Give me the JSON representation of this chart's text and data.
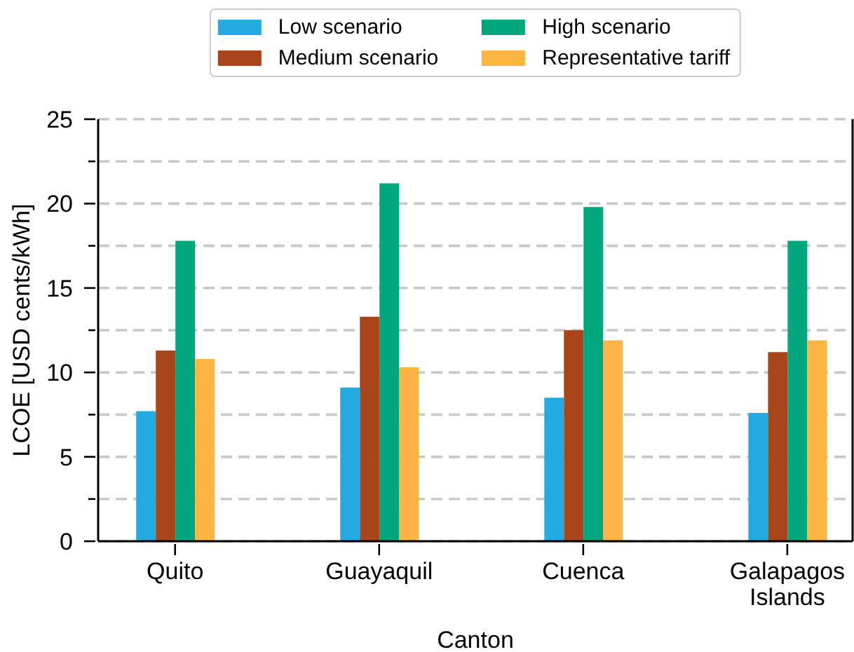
{
  "chart_data": {
    "type": "bar",
    "xlabel": "Canton",
    "ylabel": "LCOE [USD cents/kWh]",
    "categories": [
      "Quito",
      "Guayaquil",
      "Cuenca",
      "Galapagos Islands"
    ],
    "series": [
      {
        "name": "Low scenario",
        "color": "#24aae1",
        "values": [
          7.7,
          9.1,
          8.5,
          7.6
        ]
      },
      {
        "name": "Medium scenario",
        "color": "#a8451a",
        "values": [
          11.3,
          13.3,
          12.5,
          11.2
        ]
      },
      {
        "name": "High scenario",
        "color": "#00a67c",
        "values": [
          17.8,
          21.2,
          19.8,
          17.8
        ]
      },
      {
        "name": "Representative tariff",
        "color": "#fcb442",
        "values": [
          10.8,
          10.3,
          11.9,
          11.9
        ]
      }
    ],
    "ylim": [
      0,
      25
    ],
    "yticks": [
      0,
      {
        "value": 2.5,
        "label": null
      },
      5,
      {
        "value": 7.5,
        "label": null
      },
      10,
      {
        "value": 12.5,
        "label": null
      },
      15,
      {
        "value": 17.5,
        "label": null
      },
      20,
      {
        "value": 22.5,
        "label": null
      },
      25
    ],
    "grid": "y",
    "legend": "top"
  }
}
